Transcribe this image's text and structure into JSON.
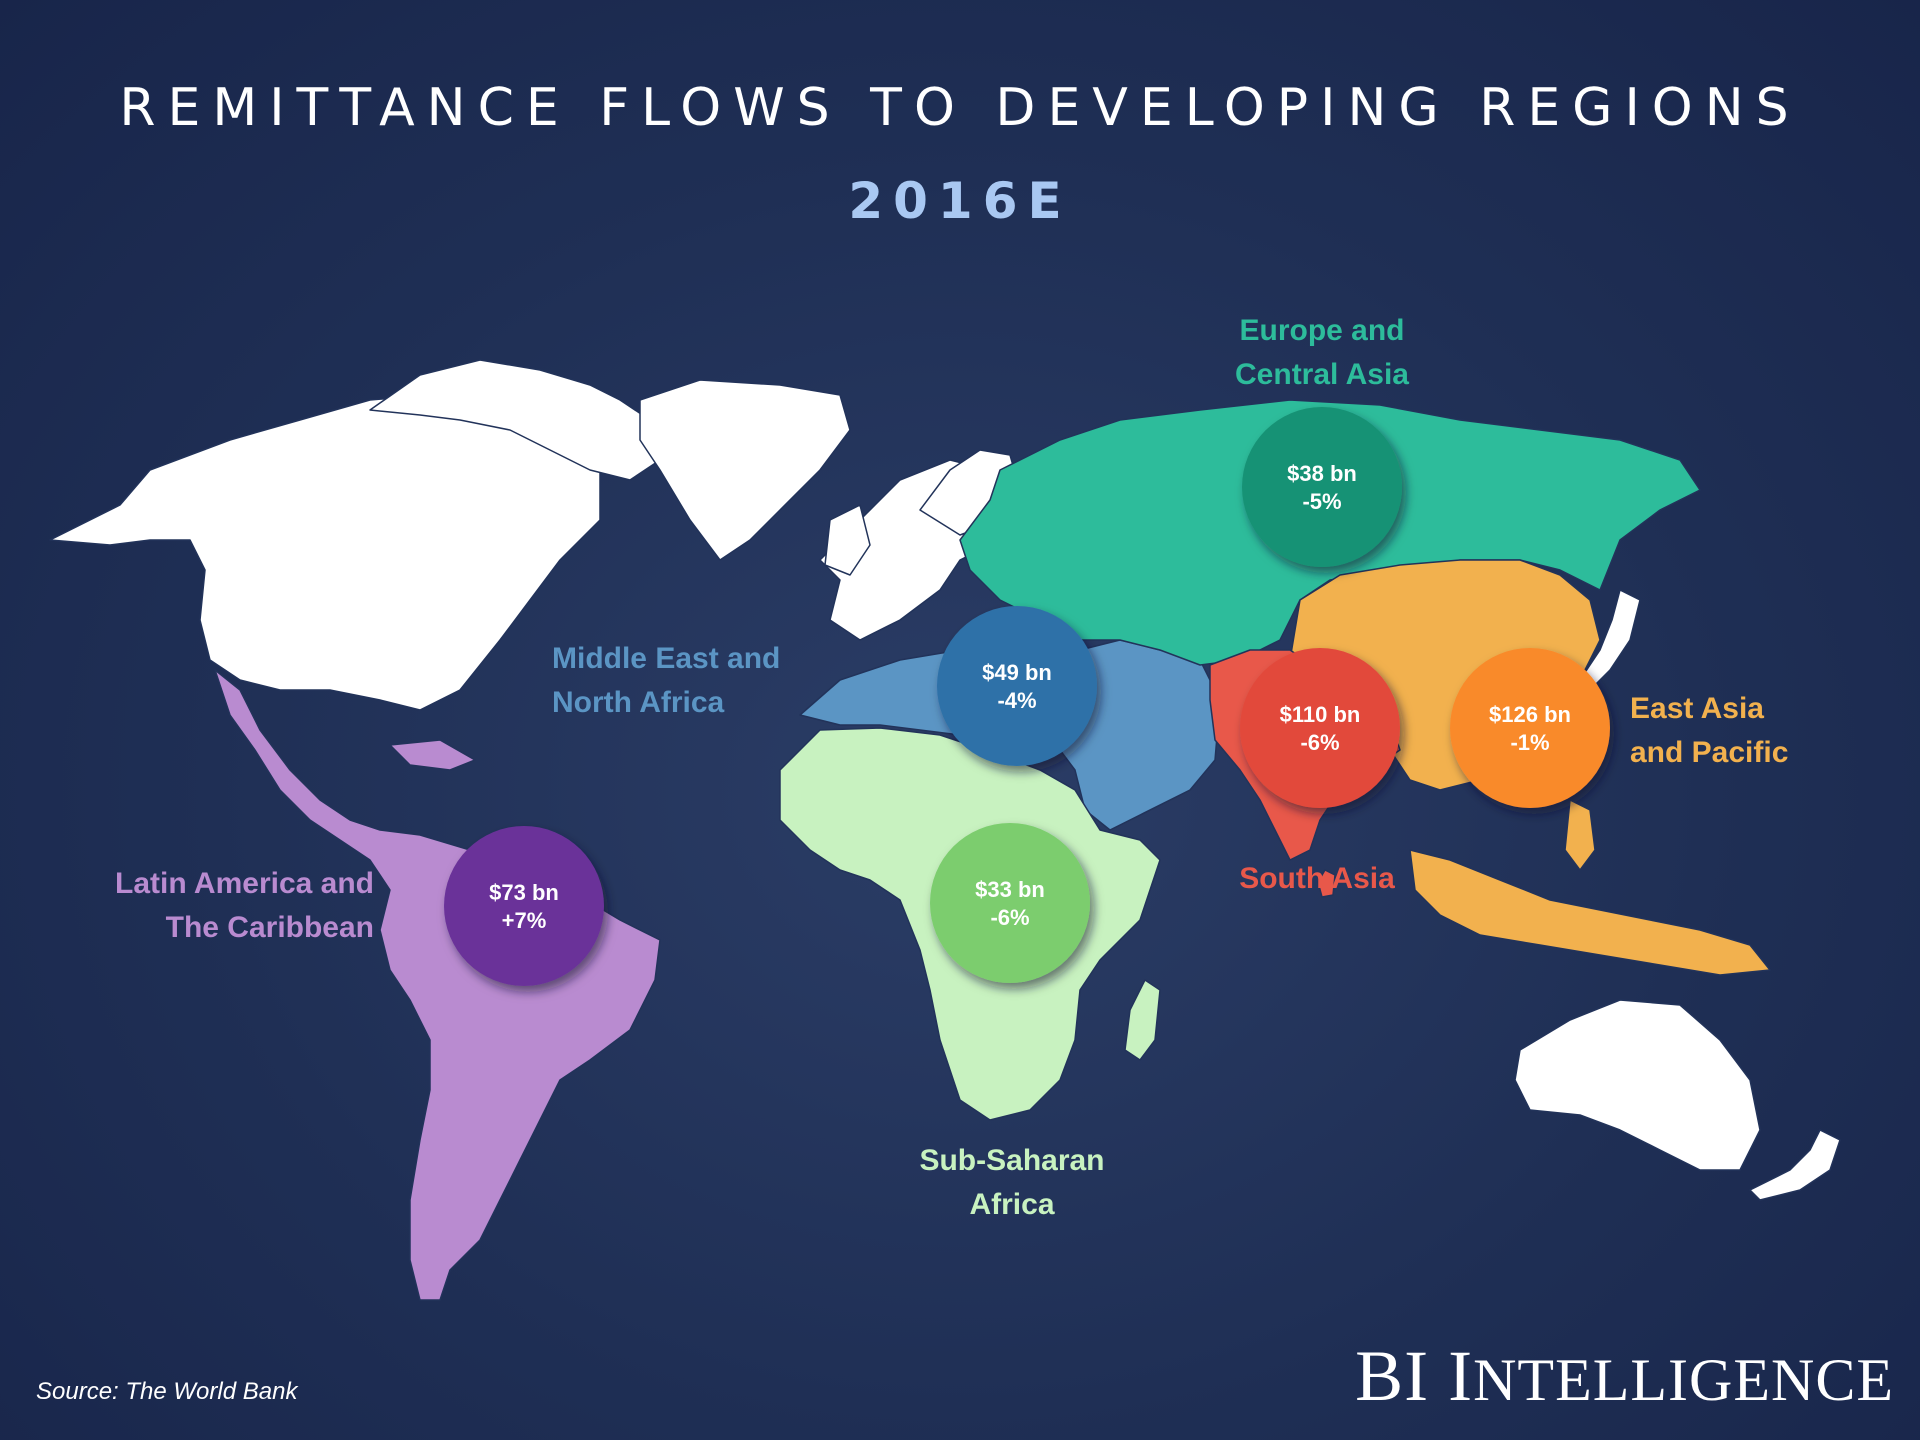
{
  "header": {
    "title": "REMITTANCE FLOWS TO DEVELOPING REGIONS",
    "subtitle": "2016E"
  },
  "colors": {
    "background": "#1f2f55",
    "other_land": "#ffffff",
    "latin_america": "#b98bd0",
    "mena": "#5b95c4",
    "sub_saharan": "#c8f2c0",
    "europe_central_asia": "#2dbc9b",
    "south_asia": "#e8584a",
    "east_asia": "#f2b14e"
  },
  "regions": [
    {
      "id": "europe",
      "label_lines": [
        "Europe and",
        "Central Asia"
      ],
      "amount": "$38 bn",
      "change": "-5%",
      "label_color": "#2dbc9b",
      "bubble_color": "#179274"
    },
    {
      "id": "mena",
      "label_lines": [
        "Middle East and",
        "North Africa"
      ],
      "amount": "$49 bn",
      "change": "-4%",
      "label_color": "#5b95c4",
      "bubble_color": "#2f71a8"
    },
    {
      "id": "latam",
      "label_lines": [
        "Latin America and",
        "The Caribbean"
      ],
      "amount": "$73 bn",
      "change": "+7%",
      "label_color": "#b98bd0",
      "bubble_color": "#6a3399"
    },
    {
      "id": "ssa",
      "label_lines": [
        "Sub-Saharan",
        "Africa"
      ],
      "amount": "$33 bn",
      "change": "-6%",
      "label_color": "#c8f2c0",
      "bubble_color": "#7ccd6e"
    },
    {
      "id": "southasia",
      "label_lines": [
        "South Asia"
      ],
      "amount": "$110 bn",
      "change": "-6%",
      "label_color": "#e8584a",
      "bubble_color": "#e24a3b"
    },
    {
      "id": "eastasia",
      "label_lines": [
        "East Asia",
        "and Pacific"
      ],
      "amount": "$126 bn",
      "change": "-1%",
      "label_color": "#f2b14e",
      "bubble_color": "#f98a2c"
    }
  ],
  "footer": {
    "source": "Source: The World Bank",
    "brand_first": "BI I",
    "brand_rest": "NTELLIGENCE"
  }
}
